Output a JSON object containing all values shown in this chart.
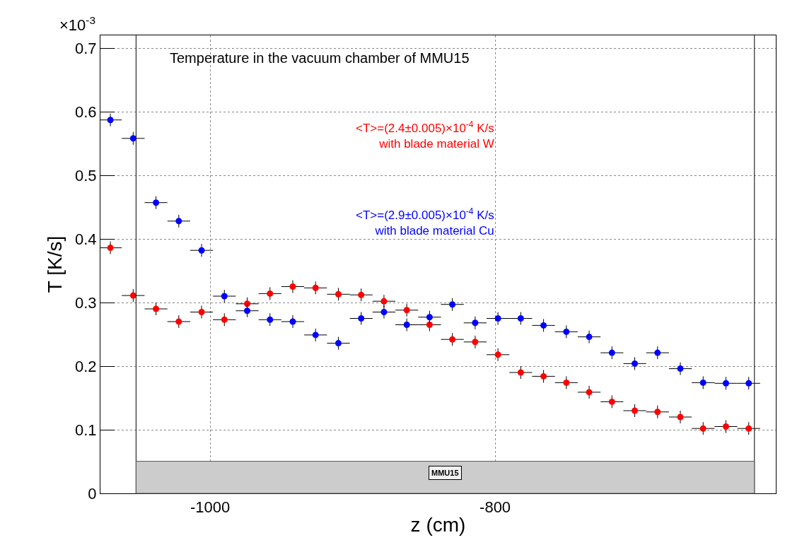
{
  "chart_data": {
    "type": "scatter",
    "title": "Temperature in the vacuum chamber of MMU15",
    "xlabel": "z (cm)",
    "ylabel": "T [K/s]",
    "annotations": [
      "×10$^{-3}$"
    ],
    "x": [
      -1070,
      -1054,
      -1038,
      -1022,
      -1006,
      -990,
      -974,
      -958,
      -942,
      -926,
      -910,
      -894,
      -878,
      -862,
      -846,
      -830,
      -814,
      -798,
      -782,
      -766,
      -750,
      -734,
      -718,
      -702,
      -686,
      -670,
      -654,
      -638,
      -622
    ],
    "series": [
      {
        "name": "<T>=(2.4±0.005)×10$^{-4}$ K/s\nwith blade material W",
        "color": "#ff0000",
        "values": [
          0.386,
          0.311,
          0.29,
          0.27,
          0.285,
          0.273,
          0.298,
          0.314,
          0.325,
          0.323,
          0.313,
          0.312,
          0.302,
          0.288,
          0.265,
          0.242,
          0.238,
          0.218,
          0.19,
          0.184,
          0.174,
          0.159,
          0.144,
          0.13,
          0.128,
          0.12,
          0.102,
          0.105,
          0.102
        ],
        "errors": [
          0.01,
          0.01,
          0.01,
          0.01,
          0.01,
          0.01,
          0.01,
          0.01,
          0.01,
          0.01,
          0.01,
          0.01,
          0.01,
          0.01,
          0.01,
          0.01,
          0.01,
          0.01,
          0.01,
          0.01,
          0.01,
          0.01,
          0.01,
          0.01,
          0.01,
          0.01,
          0.01,
          0.01,
          0.01
        ],
        "xerrors": [
          8,
          8,
          8,
          8,
          8,
          8,
          8,
          8,
          8,
          8,
          8,
          8,
          8,
          8,
          8,
          8,
          8,
          8,
          8,
          8,
          8,
          8,
          8,
          8,
          8,
          8,
          8,
          8,
          8
        ]
      },
      {
        "name": "<T>=(2.9±0.005)×10$^{-4}$ K/s\nwith blade material Cu",
        "color": "#0000ff",
        "values": [
          0.587,
          0.558,
          0.457,
          0.428,
          0.382,
          0.31,
          0.287,
          0.273,
          0.27,
          0.249,
          0.236,
          0.275,
          0.285,
          0.265,
          0.277,
          0.297,
          0.268,
          0.275,
          0.275,
          0.264,
          0.254,
          0.246,
          0.221,
          0.204,
          0.221,
          0.196,
          0.174,
          0.173,
          0.173
        ],
        "errors": [
          0.01,
          0.01,
          0.01,
          0.01,
          0.01,
          0.01,
          0.01,
          0.01,
          0.01,
          0.01,
          0.01,
          0.01,
          0.01,
          0.01,
          0.01,
          0.01,
          0.01,
          0.01,
          0.01,
          0.01,
          0.01,
          0.01,
          0.01,
          0.01,
          0.01,
          0.01,
          0.01,
          0.01,
          0.01
        ],
        "xerrors": [
          8,
          8,
          8,
          8,
          8,
          8,
          8,
          8,
          8,
          8,
          8,
          8,
          8,
          8,
          8,
          8,
          8,
          8,
          8,
          8,
          8,
          8,
          8,
          8,
          8,
          8,
          8,
          8,
          8
        ]
      }
    ],
    "xlim": [
      -1077,
      -603
    ],
    "xticks": [
      -1000,
      -800
    ],
    "ylim": [
      0,
      0.72
    ],
    "yticks": [
      0,
      0.1,
      0.2,
      0.3,
      0.4,
      0.5,
      0.6,
      0.7
    ],
    "ref_lines": [
      {
        "axis": "x",
        "value": -1052,
        "color": "#000000",
        "line_style": "solid"
      },
      {
        "axis": "x",
        "value": -618,
        "color": "#000000",
        "line_style": "solid"
      }
    ],
    "bands": [
      {
        "axis": "x",
        "from": -1052,
        "to": -618,
        "label": "MMU15",
        "color": "#cccccc"
      }
    ],
    "grid": true,
    "legend": false,
    "marker": "circle"
  }
}
